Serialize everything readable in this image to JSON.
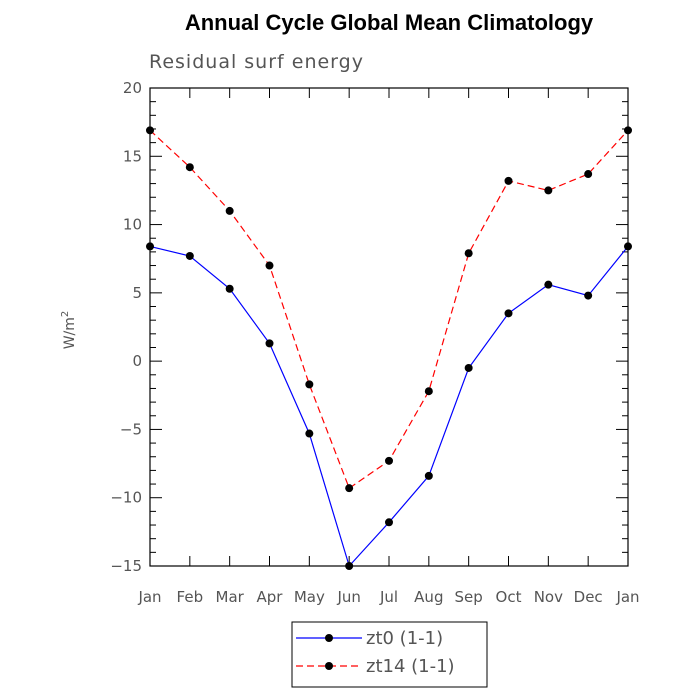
{
  "chart_data": {
    "type": "line",
    "title": "Annual Cycle Global Mean Climatology",
    "subtitle": "Residual surf energy",
    "xlabel": "",
    "ylabel_base": "W/m",
    "ylabel_exp": "2",
    "categories": [
      "Jan",
      "Feb",
      "Mar",
      "Apr",
      "May",
      "Jun",
      "Jul",
      "Aug",
      "Sep",
      "Oct",
      "Nov",
      "Dec",
      "Jan"
    ],
    "ylim": [
      -15,
      20
    ],
    "yticks": [
      -15,
      -10,
      -5,
      0,
      5,
      10,
      15,
      20
    ],
    "ytick_labels": [
      "−15",
      "−10",
      "−5",
      "0",
      "5",
      "10",
      "15",
      "20"
    ],
    "grid": false,
    "legend_position": "bottom-center",
    "series": [
      {
        "name": "zt0 (1-1)",
        "color": "#0000ff",
        "dash": "solid",
        "values": [
          8.4,
          7.7,
          5.3,
          1.3,
          -5.3,
          -15.0,
          -11.8,
          -8.4,
          -0.5,
          3.5,
          5.6,
          4.8,
          8.4
        ]
      },
      {
        "name": "zt14 (1-1)",
        "color": "#ff0000",
        "dash": "dashed",
        "values": [
          16.9,
          14.2,
          11.0,
          7.0,
          -1.7,
          -9.3,
          -7.3,
          -2.2,
          7.9,
          13.2,
          12.5,
          13.7,
          16.9
        ]
      }
    ]
  }
}
